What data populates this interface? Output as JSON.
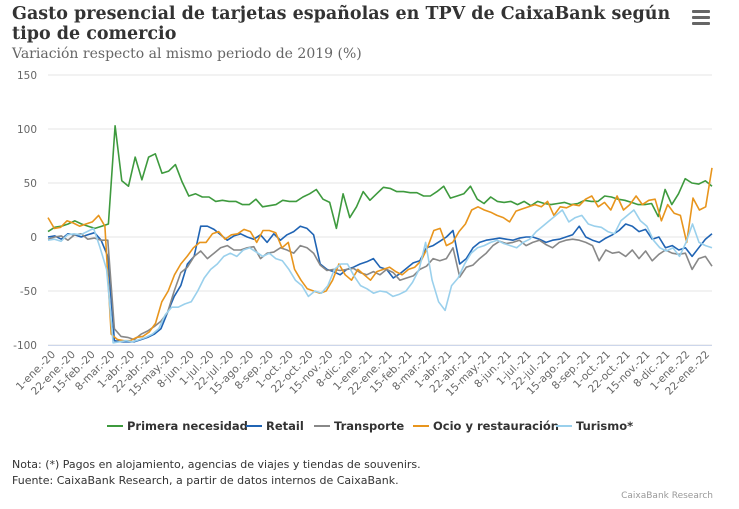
{
  "header": {
    "title": "Gasto presencial de tarjetas españolas en TPV de CaixaBank según tipo de comercio",
    "subtitle": "Variación respecto al mismo periodo de 2019 (%)",
    "menu_icon": "hamburger-menu-icon"
  },
  "footer": {
    "note": "Nota: (*) Pagos en alojamiento, agencias de viajes y tiendas de souvenirs.",
    "source": "Fuente: CaixaBank Research, a partir de datos internos de CaixaBank.",
    "credit": "CaixaBank Research"
  },
  "chart_data": {
    "type": "line",
    "ylim": [
      -100,
      150
    ],
    "yticks": [
      150,
      100,
      50,
      0,
      -50,
      -100
    ],
    "grid": "horizontal",
    "legend_position": "bottom",
    "x_labels": [
      "1-ene.-20",
      "22-ene.-20",
      "15-feb.-20",
      "8-mar.-20",
      "1-abr.-20",
      "22-abr.-20",
      "15-may.-20",
      "8-jun.-20",
      "1-jul.-20",
      "22-jul.-20",
      "15-ago.-20",
      "8-sep.-20",
      "1-oct.-20",
      "22-oct.-20",
      "15-nov.-20",
      "8-dic.-20",
      "1-ene.-21",
      "22-ene.-21",
      "15-feb.-21",
      "8-mar.-21",
      "1-abr.-21",
      "22-abr.-21",
      "15-may.-21",
      "8-jun.-21",
      "1-jul.-21",
      "22-jul.-21",
      "15-ago.-21",
      "8-sep.-21",
      "1-oct.-21",
      "22-oct.-21",
      "15-nov.-21",
      "8-dic.-21",
      "1-ene.-22",
      "22-ene.-22"
    ],
    "series": [
      {
        "name": "Primera necesidad",
        "color": "#3e9a3e",
        "values": [
          5,
          9,
          10,
          12,
          15,
          12,
          10,
          8,
          10,
          12,
          103,
          52,
          47,
          74,
          53,
          74,
          77,
          59,
          61,
          67,
          51,
          38,
          40,
          37,
          37,
          33,
          34,
          33,
          33,
          30,
          30,
          35,
          28,
          29,
          30,
          34,
          33,
          33,
          37,
          40,
          44,
          35,
          32,
          8,
          40,
          18,
          28,
          42,
          34,
          40,
          46,
          45,
          42,
          42,
          41,
          41,
          38,
          38,
          42,
          47,
          36,
          38,
          40,
          47,
          35,
          31,
          37,
          33,
          32,
          33,
          30,
          33,
          29,
          33,
          31,
          30,
          31,
          32,
          30,
          31,
          34,
          33,
          33,
          38,
          37,
          35,
          34,
          32,
          30,
          30,
          31,
          19,
          44,
          30,
          40,
          54,
          50,
          49,
          52,
          47
        ]
      },
      {
        "name": "Retail",
        "color": "#2064b4",
        "values": [
          0,
          1,
          -2,
          3,
          2,
          0,
          2,
          4,
          -3,
          -18,
          -96,
          -97,
          -97,
          -97,
          -95,
          -93,
          -90,
          -85,
          -70,
          -55,
          -45,
          -25,
          -18,
          10,
          10,
          7,
          2,
          -3,
          1,
          3,
          0,
          -2,
          2,
          -5,
          3,
          -3,
          2,
          5,
          10,
          8,
          2,
          -25,
          -30,
          -32,
          -35,
          -30,
          -28,
          -25,
          -23,
          -20,
          -28,
          -30,
          -38,
          -34,
          -29,
          -24,
          -22,
          -10,
          -8,
          -4,
          0,
          6,
          -25,
          -20,
          -10,
          -5,
          -3,
          -2,
          -1,
          -2,
          -3,
          -1,
          0,
          0,
          -2,
          -5,
          -3,
          -2,
          0,
          2,
          10,
          0,
          -3,
          -5,
          -1,
          2,
          6,
          12,
          10,
          5,
          7,
          -2,
          0,
          -10,
          -8,
          -12,
          -10,
          -18,
          -10,
          -2,
          3
        ]
      },
      {
        "name": "Transporte",
        "color": "#888888",
        "values": [
          -2,
          0,
          1,
          -3,
          2,
          3,
          -2,
          -1,
          -3,
          -3,
          -85,
          -92,
          -93,
          -95,
          -90,
          -87,
          -83,
          -78,
          -70,
          -50,
          -33,
          -28,
          -18,
          -13,
          -20,
          -15,
          -10,
          -8,
          -12,
          -12,
          -10,
          -9,
          -20,
          -15,
          -14,
          -10,
          -12,
          -15,
          -8,
          -10,
          -15,
          -26,
          -31,
          -30,
          -31,
          -30,
          -29,
          -33,
          -35,
          -32,
          -35,
          -30,
          -33,
          -40,
          -38,
          -36,
          -30,
          -27,
          -20,
          -22,
          -20,
          -10,
          -37,
          -28,
          -26,
          -20,
          -15,
          -8,
          -4,
          -6,
          -5,
          -3,
          -8,
          -5,
          -3,
          -7,
          -10,
          -5,
          -3,
          -2,
          -3,
          -5,
          -8,
          -22,
          -12,
          -15,
          -14,
          -18,
          -12,
          -20,
          -13,
          -22,
          -16,
          -12,
          -15,
          -16,
          -15,
          -30,
          -20,
          -18,
          -27
        ]
      },
      {
        "name": "Ocio y restauración",
        "color": "#e8951d",
        "values": [
          18,
          8,
          9,
          15,
          13,
          10,
          12,
          14,
          20,
          10,
          -90,
          -95,
          -96,
          -96,
          -93,
          -92,
          -88,
          -80,
          -60,
          -50,
          -35,
          -25,
          -18,
          -10,
          -5,
          -5,
          3,
          5,
          -2,
          2,
          3,
          7,
          5,
          -5,
          6,
          6,
          4,
          -10,
          -5,
          -30,
          -40,
          -48,
          -50,
          -52,
          -50,
          -40,
          -25,
          -35,
          -40,
          -30,
          -35,
          -40,
          -32,
          -30,
          -28,
          -32,
          -35,
          -30,
          -28,
          -22,
          -10,
          6,
          8,
          -8,
          -5,
          5,
          12,
          25,
          28,
          25,
          23,
          20,
          18,
          14,
          24,
          26,
          28,
          30,
          28,
          33,
          20,
          28,
          27,
          30,
          29,
          35,
          38,
          28,
          32,
          25,
          38,
          25,
          30,
          38,
          30,
          34,
          35,
          15,
          30,
          22,
          20,
          -5,
          36,
          25,
          28,
          64
        ]
      },
      {
        "name": "Turismo*",
        "color": "#9ad0ec",
        "values": [
          -3,
          -2,
          -4,
          2,
          3,
          2,
          5,
          8,
          -10,
          -30,
          -98,
          -97,
          -96,
          -97,
          -95,
          -93,
          -90,
          -85,
          -72,
          -65,
          -65,
          -62,
          -60,
          -50,
          -38,
          -30,
          -25,
          -18,
          -15,
          -18,
          -12,
          -10,
          -14,
          -18,
          -15,
          -20,
          -22,
          -30,
          -40,
          -45,
          -55,
          -50,
          -52,
          -45,
          -30,
          -25,
          -25,
          -36,
          -45,
          -48,
          -52,
          -50,
          -51,
          -55,
          -53,
          -50,
          -42,
          -30,
          -5,
          -40,
          -60,
          -68,
          -45,
          -38,
          -25,
          -15,
          -10,
          -8,
          -5,
          -3,
          -6,
          -8,
          -10,
          -5,
          -2,
          5,
          10,
          15,
          20,
          25,
          14,
          18,
          20,
          12,
          10,
          9,
          5,
          3,
          15,
          20,
          25,
          15,
          10,
          -3,
          -10,
          -13,
          -10,
          -18,
          -5,
          12,
          -5,
          -8,
          -10
        ]
      }
    ]
  }
}
